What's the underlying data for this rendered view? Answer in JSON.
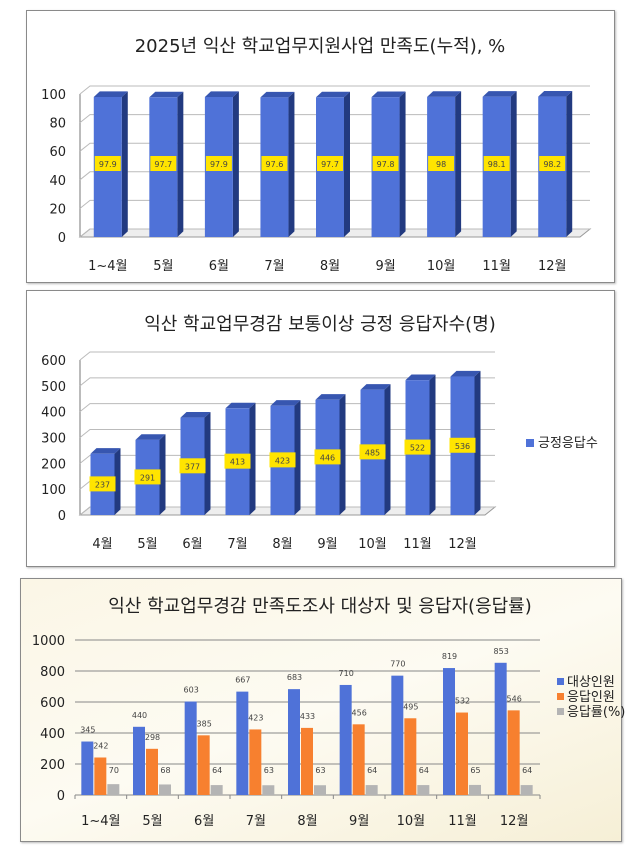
{
  "chart_data": [
    {
      "type": "bar",
      "title": "2025년 익산 학교업무지원사업 만족도(누적), %",
      "categories": [
        "1~4월",
        "5월",
        "6월",
        "7월",
        "8월",
        "9월",
        "10월",
        "11월",
        "12월"
      ],
      "values": [
        97.9,
        97.7,
        97.9,
        97.6,
        97.7,
        97.8,
        98,
        98.1,
        98.2
      ],
      "ylim": [
        0,
        100
      ],
      "yticks": [
        0,
        20,
        40,
        60,
        80,
        100
      ],
      "grid": true,
      "three_d": true,
      "colors": {
        "bar": "#4f72d8",
        "label_bg": "#ffe400"
      }
    },
    {
      "type": "bar",
      "title": "익산 학교업무경감 보통이상 긍정 응답자수(명)",
      "categories": [
        "4월",
        "5월",
        "6월",
        "7월",
        "8월",
        "9월",
        "10월",
        "11월",
        "12월"
      ],
      "series": [
        {
          "name": "긍정응답수",
          "values": [
            237,
            291,
            377,
            413,
            423,
            446,
            485,
            522,
            536
          ]
        }
      ],
      "ylim": [
        0,
        600
      ],
      "yticks": [
        0,
        100,
        200,
        300,
        400,
        500,
        600
      ],
      "grid": true,
      "legend": "right",
      "three_d": true,
      "colors": {
        "bar": "#4f72d8",
        "label_bg": "#ffe400"
      }
    },
    {
      "type": "bar",
      "title": "익산 학교업무경감 만족도조사 대상자 및 응답자(응답률)",
      "categories": [
        "1~4월",
        "5월",
        "6월",
        "7월",
        "8월",
        "9월",
        "10월",
        "11월",
        "12월"
      ],
      "series": [
        {
          "name": "대상인원",
          "values": [
            345,
            440,
            603,
            667,
            683,
            710,
            770,
            819,
            853
          ],
          "color": "#4f72d8"
        },
        {
          "name": "응답인원",
          "values": [
            242,
            298,
            385,
            423,
            433,
            456,
            495,
            532,
            546
          ],
          "color": "#f7802f"
        },
        {
          "name": "응답률(%)",
          "values": [
            70,
            68,
            64,
            63,
            63,
            64,
            64,
            65,
            64
          ],
          "color": "#b4b4b4"
        }
      ],
      "ylim": [
        0,
        1000
      ],
      "yticks": [
        0,
        200,
        400,
        600,
        800,
        1000
      ],
      "grid": true,
      "legend": "right"
    }
  ]
}
